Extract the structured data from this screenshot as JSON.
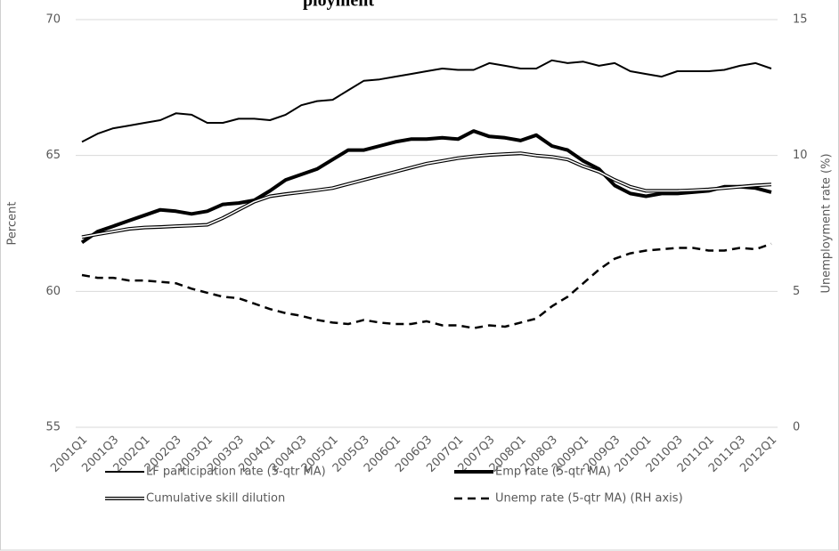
{
  "chart_data": {
    "type": "line",
    "title": "ployment",
    "y_label": "Percent",
    "y2_label": "Unemployment rate (%)",
    "categories": [
      "2001Q1",
      null,
      "2001Q3",
      null,
      "2002Q1",
      null,
      "2002Q3",
      null,
      "2003Q1",
      null,
      "2003Q3",
      null,
      "2004Q1",
      null,
      "2004Q3",
      null,
      "2005Q1",
      null,
      "2005Q3",
      null,
      "2006Q1",
      null,
      "2006Q3",
      null,
      "2007Q1",
      null,
      "2007Q3",
      null,
      "2008Q1",
      null,
      "2008Q3",
      null,
      "2009Q1",
      null,
      "2009Q3",
      null,
      "2010Q1",
      null,
      "2010Q3",
      null,
      "2011Q1",
      null,
      "2011Q3",
      null,
      "2012Q1"
    ],
    "ylim": [
      55,
      70
    ],
    "yticks": [
      55,
      60,
      65,
      70
    ],
    "y2lim": [
      0,
      15
    ],
    "y2ticks": [
      0,
      5,
      10,
      15
    ],
    "grid": true,
    "legend": "bottom",
    "series": [
      {
        "name": "LF participation rate (5-qtr MA)",
        "color": "#000000",
        "style": "solid",
        "values": [
          65.5,
          65.8,
          66.0,
          66.1,
          66.2,
          66.3,
          66.55,
          66.5,
          66.2,
          66.2,
          66.35,
          66.35,
          66.3,
          66.5,
          66.85,
          67.0,
          67.05,
          67.4,
          67.75,
          67.8,
          67.9,
          68.0,
          68.1,
          68.2,
          68.15,
          68.15,
          68.4,
          68.3,
          68.2,
          68.2,
          68.5,
          68.4,
          68.45,
          68.3,
          68.4,
          68.1,
          68.0,
          67.9,
          68.1,
          68.1,
          68.1,
          68.15,
          68.3,
          68.4,
          68.2
        ]
      },
      {
        "name": "Emp  rate (5-qtr MA)",
        "color": "#000000",
        "style": "thick",
        "values": [
          61.8,
          62.2,
          62.4,
          62.6,
          62.8,
          63.0,
          62.95,
          62.85,
          62.95,
          63.2,
          63.25,
          63.35,
          63.7,
          64.1,
          64.3,
          64.5,
          64.85,
          65.2,
          65.2,
          65.35,
          65.5,
          65.6,
          65.6,
          65.65,
          65.6,
          65.9,
          65.7,
          65.65,
          65.55,
          65.75,
          65.35,
          65.2,
          64.8,
          64.5,
          63.9,
          63.6,
          63.5,
          63.6,
          63.6,
          63.65,
          63.7,
          63.85,
          63.85,
          63.8,
          63.65
        ]
      },
      {
        "name": "Cumulative skill dilution",
        "color": "#000000",
        "style": "double",
        "values": [
          62.0,
          62.1,
          62.2,
          62.3,
          62.35,
          62.37,
          62.4,
          62.42,
          62.45,
          62.7,
          63.0,
          63.3,
          63.5,
          63.58,
          63.65,
          63.72,
          63.8,
          63.95,
          64.1,
          64.25,
          64.4,
          64.55,
          64.7,
          64.8,
          64.9,
          64.97,
          65.02,
          65.05,
          65.08,
          65.0,
          64.95,
          64.85,
          64.6,
          64.4,
          64.1,
          63.85,
          63.7,
          63.7,
          63.7,
          63.72,
          63.75,
          63.8,
          63.85,
          63.9,
          63.93
        ]
      },
      {
        "name": "Unemp rate (5-qtr MA) (RH axis)",
        "color": "#000000",
        "style": "dashed",
        "axis": "y2",
        "values": [
          5.6,
          5.5,
          5.5,
          5.4,
          5.4,
          5.35,
          5.3,
          5.1,
          4.95,
          4.8,
          4.75,
          4.55,
          4.35,
          4.2,
          4.1,
          3.95,
          3.85,
          3.8,
          3.95,
          3.85,
          3.8,
          3.8,
          3.9,
          3.75,
          3.75,
          3.65,
          3.75,
          3.7,
          3.85,
          4.0,
          4.45,
          4.8,
          5.3,
          5.8,
          6.2,
          6.4,
          6.5,
          6.55,
          6.6,
          6.6,
          6.5,
          6.5,
          6.6,
          6.55,
          6.75
        ]
      }
    ]
  }
}
